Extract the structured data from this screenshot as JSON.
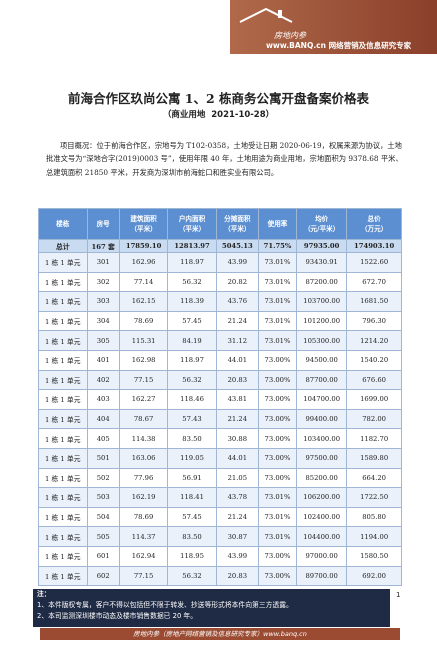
{
  "header": {
    "logo_name": "房地内参",
    "logo_tagline": "www.BANQ.cn 网络营销及信息研究专家"
  },
  "title": "前海合作区玖尚公寓 1、2 栋商务公寓开盘备案价格表",
  "subtitle": "（商业用地  2021-10-28）",
  "overview": "项目概况：位于前海合作区，宗地号为 T102-0358，土地受让日期 2020-06-19，权属来源为协议，土地批准文号为“深地合字(2019)0003 号”，使用年限 40 年，土地用途为商业用地，宗地面积为 9378.68 平米、总建筑面积 21850 平米，开发商为深圳市前海蛇口和胜实业有限公司。",
  "table": {
    "columns": [
      [
        "楼栋"
      ],
      [
        "房号"
      ],
      [
        "建筑面积",
        "（平米）"
      ],
      [
        "户内面积",
        "（平米）"
      ],
      [
        "分摊面积",
        "（平米）"
      ],
      [
        "使用率"
      ],
      [
        "均价",
        "（元/平米）"
      ],
      [
        "总价",
        "（万元）"
      ]
    ],
    "total": [
      "总计",
      "167 套",
      "17859.10",
      "12813.97",
      "5045.13",
      "71.75%",
      "97935.00",
      "174903.10"
    ],
    "rows": [
      [
        "1 栋 1 单元",
        "301",
        "162.96",
        "118.97",
        "43.99",
        "73.01%",
        "93430.91",
        "1522.60"
      ],
      [
        "1 栋 1 单元",
        "302",
        "77.14",
        "56.32",
        "20.82",
        "73.01%",
        "87200.00",
        "672.70"
      ],
      [
        "1 栋 1 单元",
        "303",
        "162.15",
        "118.39",
        "43.76",
        "73.01%",
        "103700.00",
        "1681.50"
      ],
      [
        "1 栋 1 单元",
        "304",
        "78.69",
        "57.45",
        "21.24",
        "73.01%",
        "101200.00",
        "796.30"
      ],
      [
        "1 栋 1 单元",
        "305",
        "115.31",
        "84.19",
        "31.12",
        "73.01%",
        "105300.00",
        "1214.20"
      ],
      [
        "1 栋 1 单元",
        "401",
        "162.98",
        "118.97",
        "44.01",
        "73.00%",
        "94500.00",
        "1540.20"
      ],
      [
        "1 栋 1 单元",
        "402",
        "77.15",
        "56.32",
        "20.83",
        "73.00%",
        "87700.00",
        "676.60"
      ],
      [
        "1 栋 1 单元",
        "403",
        "162.27",
        "118.46",
        "43.81",
        "73.00%",
        "104700.00",
        "1699.00"
      ],
      [
        "1 栋 1 单元",
        "404",
        "78.67",
        "57.43",
        "21.24",
        "73.00%",
        "99400.00",
        "782.00"
      ],
      [
        "1 栋 1 单元",
        "405",
        "114.38",
        "83.50",
        "30.88",
        "73.00%",
        "103400.00",
        "1182.70"
      ],
      [
        "1 栋 1 单元",
        "501",
        "163.06",
        "119.05",
        "44.01",
        "73.00%",
        "97500.00",
        "1589.80"
      ],
      [
        "1 栋 1 单元",
        "502",
        "77.96",
        "56.91",
        "21.05",
        "73.00%",
        "85200.00",
        "664.20"
      ],
      [
        "1 栋 1 单元",
        "503",
        "162.19",
        "118.41",
        "43.78",
        "73.01%",
        "106200.00",
        "1722.50"
      ],
      [
        "1 栋 1 单元",
        "504",
        "78.69",
        "57.45",
        "21.24",
        "73.01%",
        "102400.00",
        "805.80"
      ],
      [
        "1 栋 1 单元",
        "505",
        "114.37",
        "83.50",
        "30.87",
        "73.01%",
        "104400.00",
        "1194.00"
      ],
      [
        "1 栋 1 单元",
        "601",
        "162.94",
        "118.95",
        "43.99",
        "73.00%",
        "97000.00",
        "1580.50"
      ],
      [
        "1 栋 1 单元",
        "602",
        "77.15",
        "56.32",
        "20.83",
        "73.00%",
        "89700.00",
        "692.00"
      ]
    ]
  },
  "notes": {
    "label": "注：",
    "items": [
      "1、本件版权专属，客户不得以包括但不限于转发、抄送等形式将本件向第三方透露。",
      "2、本司监测深圳楼市动态及楼市销售数据已 20 年。"
    ]
  },
  "page_number": "1",
  "footer": "房地内参（房地产网络营销及信息研究专家）www.banq.cn"
}
